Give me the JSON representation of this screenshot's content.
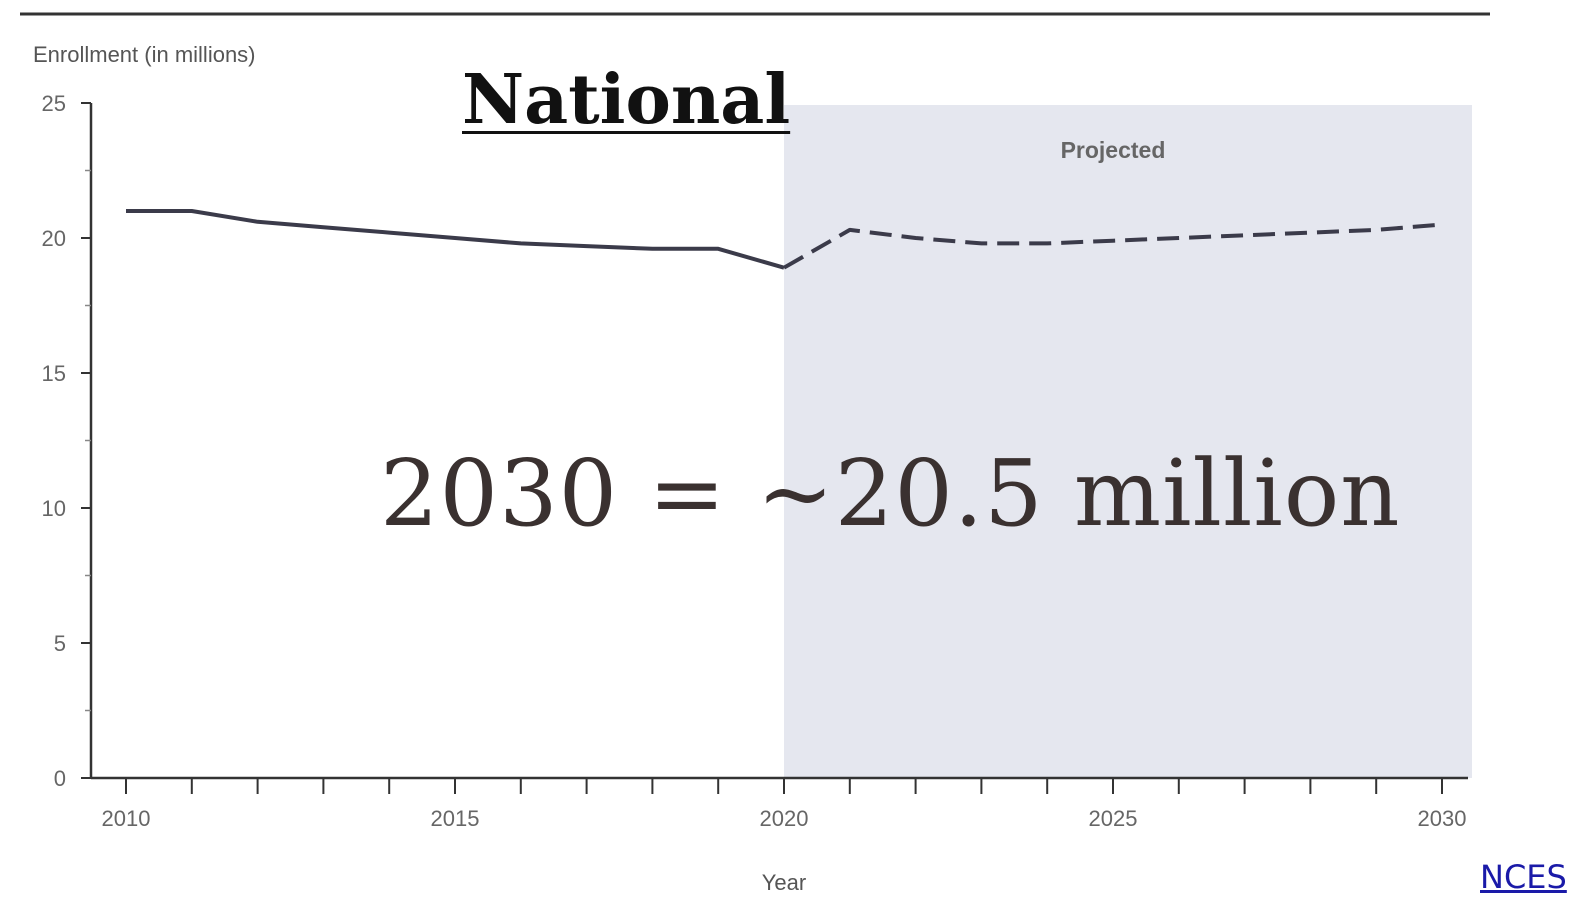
{
  "slide": {
    "title": "National",
    "callout": "2030 = ~20.5 million",
    "source_link": "NCES"
  },
  "chart_data": {
    "type": "line",
    "title": "",
    "xlabel": "Year",
    "ylabel": "Enrollment (in millions)",
    "xlim": [
      2010,
      2030
    ],
    "ylim": [
      0,
      25
    ],
    "x_ticks": [
      "2010",
      "2015",
      "2020",
      "2025",
      "2030"
    ],
    "y_ticks": [
      "0",
      "5",
      "10",
      "15",
      "20",
      "25"
    ],
    "grid": false,
    "shaded_region": {
      "label": "Projected",
      "x_start": 2020,
      "x_end": 2030,
      "color": "#e5e7ef"
    },
    "series": [
      {
        "style": "solid",
        "color": "#3b3b4a",
        "x": [
          2010,
          2011,
          2012,
          2013,
          2014,
          2015,
          2016,
          2017,
          2018,
          2019,
          2020
        ],
        "y": [
          21.0,
          21.0,
          20.6,
          20.4,
          20.2,
          20.0,
          19.8,
          19.7,
          19.6,
          19.6,
          18.9
        ]
      },
      {
        "style": "dashed",
        "color": "#3b3b4a",
        "x": [
          2020,
          2021,
          2022,
          2023,
          2024,
          2025,
          2026,
          2027,
          2028,
          2029,
          2030
        ],
        "y": [
          18.9,
          20.3,
          20.0,
          19.8,
          19.8,
          19.9,
          20.0,
          20.1,
          20.2,
          20.3,
          20.5
        ]
      }
    ]
  }
}
